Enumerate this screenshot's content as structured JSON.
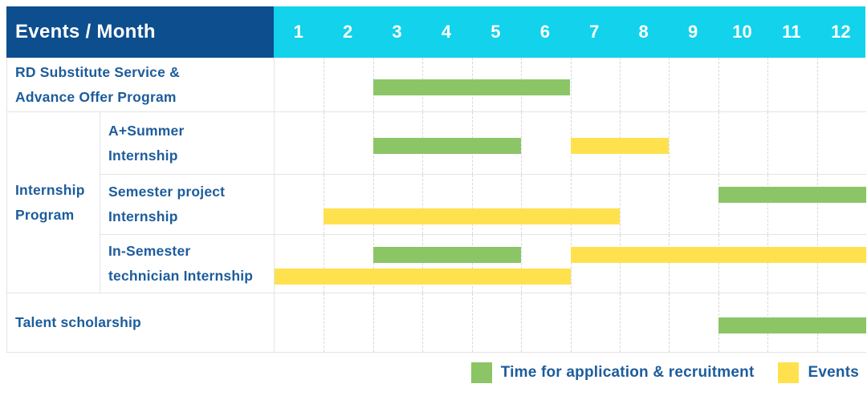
{
  "header": {
    "title": "Events / Month",
    "months": [
      "1",
      "2",
      "3",
      "4",
      "5",
      "6",
      "7",
      "8",
      "9",
      "10",
      "11",
      "12"
    ]
  },
  "group": {
    "label_lines": [
      "Internship",
      "Program"
    ]
  },
  "rows": [
    {
      "label_lines": [
        "RD Substitute Service &",
        "Advance Offer Program"
      ],
      "bars": [
        {
          "type": "application",
          "start": 3,
          "end": 6,
          "lane": "center"
        }
      ]
    },
    {
      "label_lines": [
        "A+Summer",
        "Internship"
      ],
      "bars": [
        {
          "type": "application",
          "start": 3,
          "end": 5,
          "lane": "center"
        },
        {
          "type": "events",
          "start": 7,
          "end": 8,
          "lane": "center"
        }
      ]
    },
    {
      "label_lines": [
        "Semester project",
        "Internship"
      ],
      "bars": [
        {
          "type": "application",
          "start": 10,
          "end": 12,
          "lane": "upper"
        },
        {
          "type": "events",
          "start": 2,
          "end": 7,
          "lane": "lower"
        }
      ]
    },
    {
      "label_lines": [
        "In-Semester",
        "technician Internship"
      ],
      "bars": [
        {
          "type": "application",
          "start": 3,
          "end": 5,
          "lane": "upper"
        },
        {
          "type": "events",
          "start": 7,
          "end": 12,
          "lane": "upper"
        },
        {
          "type": "events",
          "start": 1,
          "end": 6,
          "lane": "lower"
        }
      ]
    },
    {
      "label_lines": [
        "Talent scholarship"
      ],
      "bars": [
        {
          "type": "application",
          "start": 10,
          "end": 12,
          "lane": "center"
        }
      ]
    }
  ],
  "legend": [
    {
      "type": "application",
      "label": "Time for application & recruitment"
    },
    {
      "type": "events",
      "label": "Events"
    }
  ],
  "colors": {
    "application": "#8bc566",
    "events": "#ffe14e",
    "header_navy": "#0d4e8e",
    "header_cyan": "#12d2ec",
    "label_text": "#1d5c9c",
    "grid_border": "#e4e4e4"
  },
  "chart_data": {
    "type": "bar",
    "subtype": "gantt",
    "title": "Events / Month",
    "x_axis": {
      "label": "Month",
      "ticks": [
        1,
        2,
        3,
        4,
        5,
        6,
        7,
        8,
        9,
        10,
        11,
        12
      ],
      "range": [
        1,
        12
      ]
    },
    "grid": true,
    "legend_position": "bottom-right",
    "series_names": [
      "Time for application & recruitment",
      "Events"
    ],
    "rows": [
      {
        "category": "RD Substitute Service & Advance Offer Program",
        "bars": [
          {
            "series": "Time for application & recruitment",
            "start_month": 3,
            "end_month": 6
          }
        ]
      },
      {
        "category": "Internship Program - A+Summer Internship",
        "bars": [
          {
            "series": "Time for application & recruitment",
            "start_month": 3,
            "end_month": 5
          },
          {
            "series": "Events",
            "start_month": 7,
            "end_month": 8
          }
        ]
      },
      {
        "category": "Internship Program - Semester project Internship",
        "bars": [
          {
            "series": "Time for application & recruitment",
            "start_month": 10,
            "end_month": 12
          },
          {
            "series": "Events",
            "start_month": 2,
            "end_month": 7
          }
        ]
      },
      {
        "category": "Internship Program - In-Semester technician Internship",
        "bars": [
          {
            "series": "Time for application & recruitment",
            "start_month": 3,
            "end_month": 5
          },
          {
            "series": "Events",
            "start_month": 7,
            "end_month": 12
          },
          {
            "series": "Events",
            "start_month": 1,
            "end_month": 6
          }
        ]
      },
      {
        "category": "Talent scholarship",
        "bars": [
          {
            "series": "Time for application & recruitment",
            "start_month": 10,
            "end_month": 12
          }
        ]
      }
    ]
  }
}
